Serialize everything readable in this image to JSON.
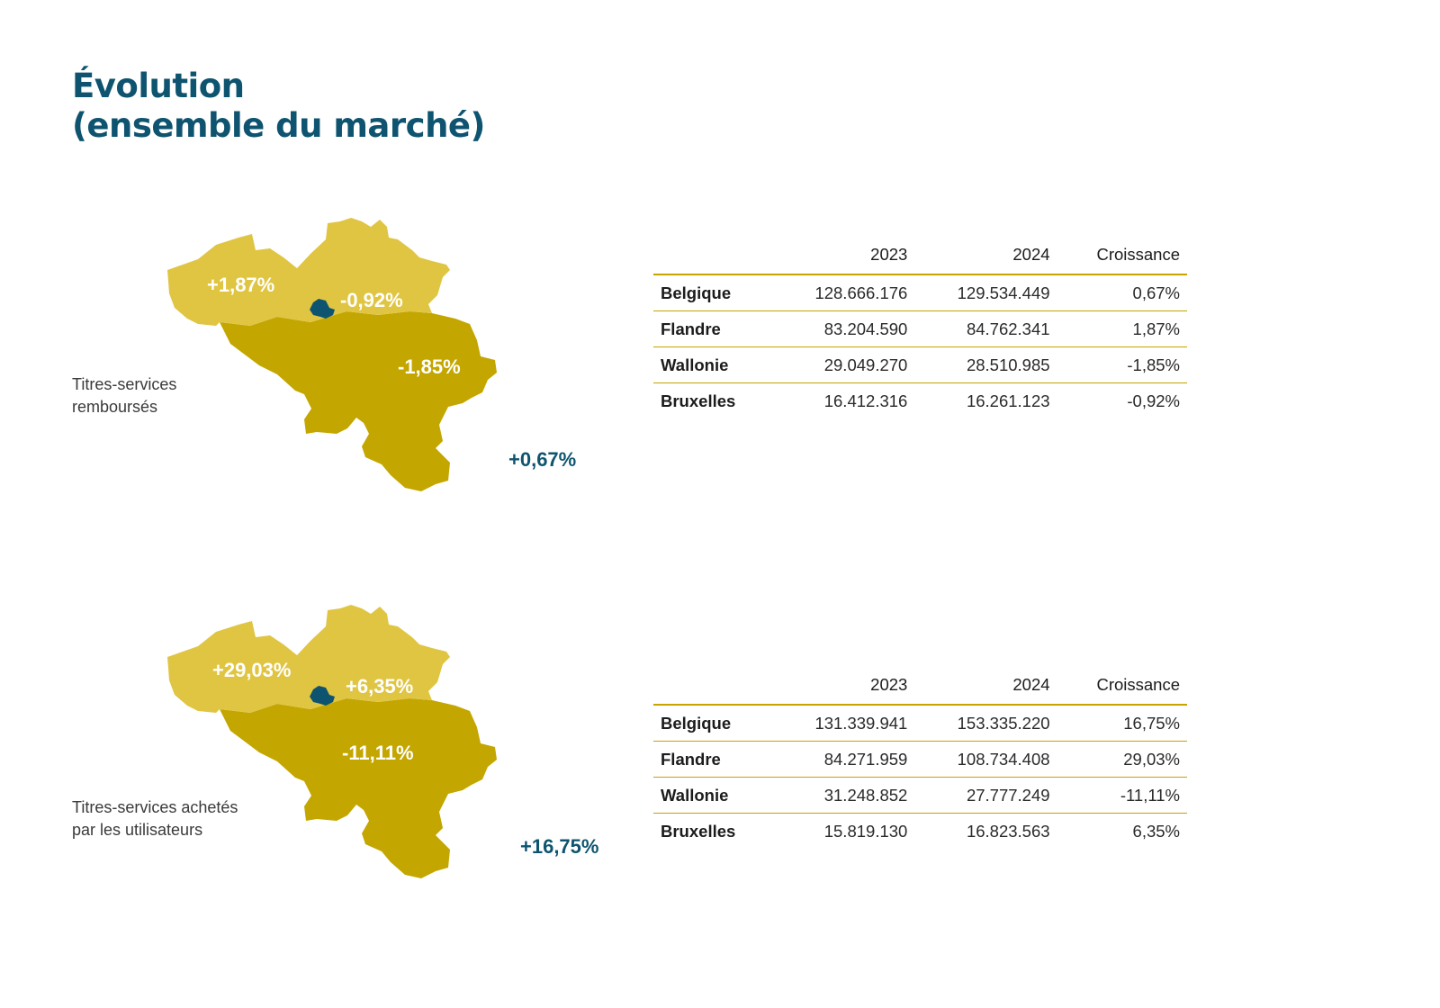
{
  "page": {
    "title_line1": "Évolution",
    "title_line2": "(ensemble du marché)"
  },
  "colors": {
    "flandre": "#e0c543",
    "wallonie": "#c4a600",
    "bruxelles": "#0e5470",
    "accent_text": "#0e5470",
    "rule": "#c9a300"
  },
  "sections": [
    {
      "caption_line1": "Titres-services",
      "caption_line2": "remboursés",
      "total_growth": "+0,67%",
      "map_labels": {
        "flandre": "+1,87%",
        "bruxelles": "-0,92%",
        "wallonie": "-1,85%"
      },
      "table": {
        "headers": [
          "",
          "2023",
          "2024",
          "Croissance"
        ],
        "rows": [
          {
            "region": "Belgique",
            "y2023": "128.666.176",
            "y2024": "129.534.449",
            "growth": "0,67%"
          },
          {
            "region": "Flandre",
            "y2023": "83.204.590",
            "y2024": "84.762.341",
            "growth": "1,87%"
          },
          {
            "region": "Wallonie",
            "y2023": "29.049.270",
            "y2024": "28.510.985",
            "growth": "-1,85%"
          },
          {
            "region": "Bruxelles",
            "y2023": "16.412.316",
            "y2024": "16.261.123",
            "growth": "-0,92%"
          }
        ]
      }
    },
    {
      "caption_line1": "Titres-services achetés",
      "caption_line2": "par les utilisateurs",
      "total_growth": "+16,75%",
      "map_labels": {
        "flandre": "+29,03%",
        "bruxelles": "+6,35%",
        "wallonie": "-11,11%"
      },
      "table": {
        "headers": [
          "",
          "2023",
          "2024",
          "Croissance"
        ],
        "rows": [
          {
            "region": "Belgique",
            "y2023": "131.339.941",
            "y2024": "153.335.220",
            "growth": "16,75%"
          },
          {
            "region": "Flandre",
            "y2023": "84.271.959",
            "y2024": "108.734.408",
            "growth": "29,03%"
          },
          {
            "region": "Wallonie",
            "y2023": "31.248.852",
            "y2024": "27.777.249",
            "growth": "-11,11%"
          },
          {
            "region": "Bruxelles",
            "y2023": "15.819.130",
            "y2024": "16.823.563",
            "growth": "6,35%"
          }
        ]
      }
    }
  ]
}
